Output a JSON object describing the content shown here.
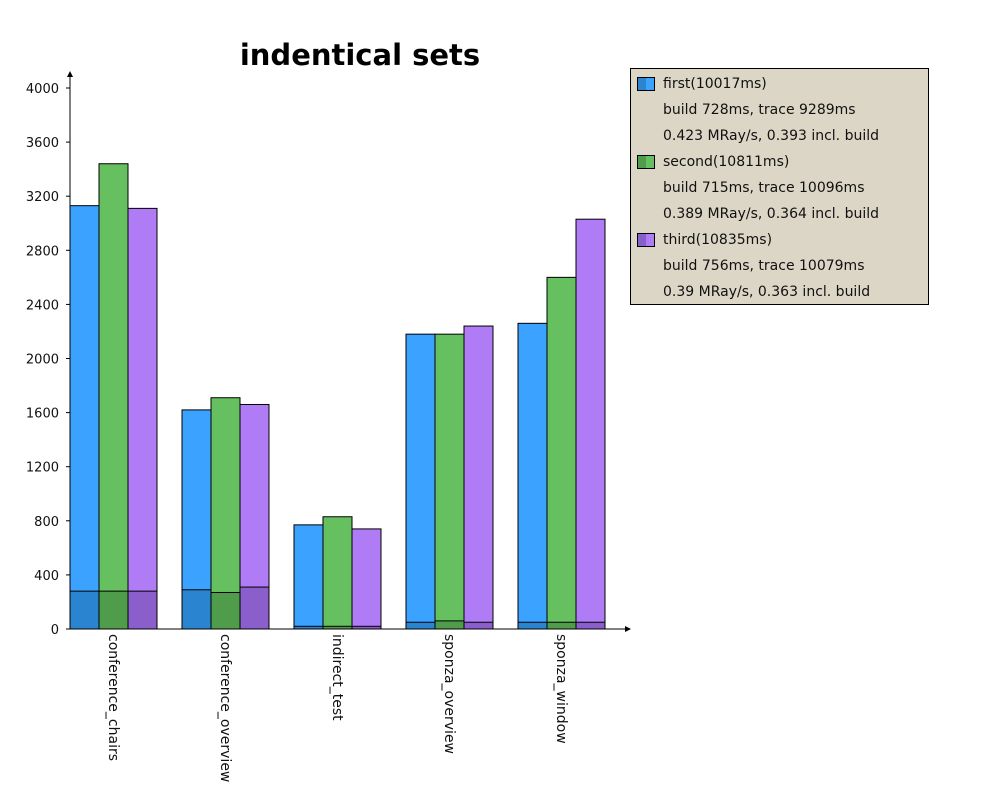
{
  "chart_data": {
    "type": "bar",
    "title": "indentical sets",
    "xlabel": "",
    "ylabel": "",
    "ylim": [
      0,
      4000
    ],
    "yticks": [
      0,
      400,
      800,
      1200,
      1600,
      2000,
      2400,
      2800,
      3200,
      3600,
      4000
    ],
    "categories": [
      "conference_chairs",
      "conference_overview",
      "indirect_test",
      "sponza_overview",
      "sponza_window"
    ],
    "series": [
      {
        "name": "first(10017ms)",
        "color": "#3ba3ff",
        "build_color": "#2a84d0",
        "values": [
          3130,
          1620,
          770,
          2180,
          2260
        ],
        "build_values": [
          280,
          290,
          20,
          50,
          50
        ],
        "legend_lines": [
          "build 728ms, trace 9289ms",
          "0.423 MRay/s, 0.393 incl. build"
        ]
      },
      {
        "name": "second(10811ms)",
        "color": "#66c060",
        "build_color": "#4f9c4a",
        "values": [
          3440,
          1710,
          830,
          2180,
          2600
        ],
        "build_values": [
          280,
          270,
          20,
          60,
          50
        ],
        "legend_lines": [
          "build 715ms, trace 10096ms",
          "0.389 MRay/s, 0.364 incl. build"
        ]
      },
      {
        "name": "third(10835ms)",
        "color": "#b07cf5",
        "build_color": "#8a5fcc",
        "values": [
          3110,
          1660,
          740,
          2240,
          3030
        ],
        "build_values": [
          280,
          310,
          20,
          50,
          50
        ],
        "legend_lines": [
          "build 756ms, trace 10079ms",
          "0.39 MRay/s, 0.363 incl. build"
        ]
      }
    ],
    "legend_position": "top-right",
    "grid": false
  }
}
